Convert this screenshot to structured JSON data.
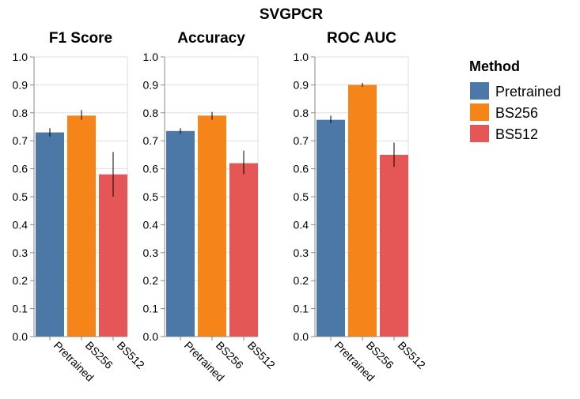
{
  "figure": {
    "title": "SVGPCR"
  },
  "legend": {
    "title": "Method",
    "placement": "right",
    "entries": [
      {
        "label": "Pretrained",
        "color": "#4c78a8"
      },
      {
        "label": "BS256",
        "color": "#f58518"
      },
      {
        "label": "BS512",
        "color": "#e45756"
      }
    ]
  },
  "chart_data": [
    {
      "type": "bar",
      "title": "F1 Score",
      "categories": [
        "Pretrained",
        "BS256",
        "BS512"
      ],
      "values": [
        0.73,
        0.79,
        0.58
      ],
      "error_low": [
        0.715,
        0.775,
        0.5
      ],
      "error_high": [
        0.745,
        0.81,
        0.66
      ],
      "ylim": [
        0,
        1
      ],
      "yticks": [
        "0.0",
        "0.1",
        "0.2",
        "0.3",
        "0.4",
        "0.5",
        "0.6",
        "0.7",
        "0.8",
        "0.9",
        "1.0"
      ],
      "grid": true
    },
    {
      "type": "bar",
      "title": "Accuracy",
      "categories": [
        "Pretrained",
        "BS256",
        "BS512"
      ],
      "values": [
        0.735,
        0.79,
        0.62
      ],
      "error_low": [
        0.725,
        0.775,
        0.58
      ],
      "error_high": [
        0.745,
        0.803,
        0.665
      ],
      "ylim": [
        0,
        1
      ],
      "yticks": [
        "0.0",
        "0.1",
        "0.2",
        "0.3",
        "0.4",
        "0.5",
        "0.6",
        "0.7",
        "0.8",
        "0.9",
        "1.0"
      ],
      "grid": true
    },
    {
      "type": "bar",
      "title": "ROC AUC",
      "categories": [
        "Pretrained",
        "BS256",
        "BS512"
      ],
      "values": [
        0.775,
        0.9,
        0.65
      ],
      "error_low": [
        0.763,
        0.893,
        0.607
      ],
      "error_high": [
        0.79,
        0.907,
        0.693
      ],
      "ylim": [
        0,
        1
      ],
      "yticks": [
        "0.0",
        "0.1",
        "0.2",
        "0.3",
        "0.4",
        "0.5",
        "0.6",
        "0.7",
        "0.8",
        "0.9",
        "1.0"
      ],
      "grid": true
    }
  ]
}
